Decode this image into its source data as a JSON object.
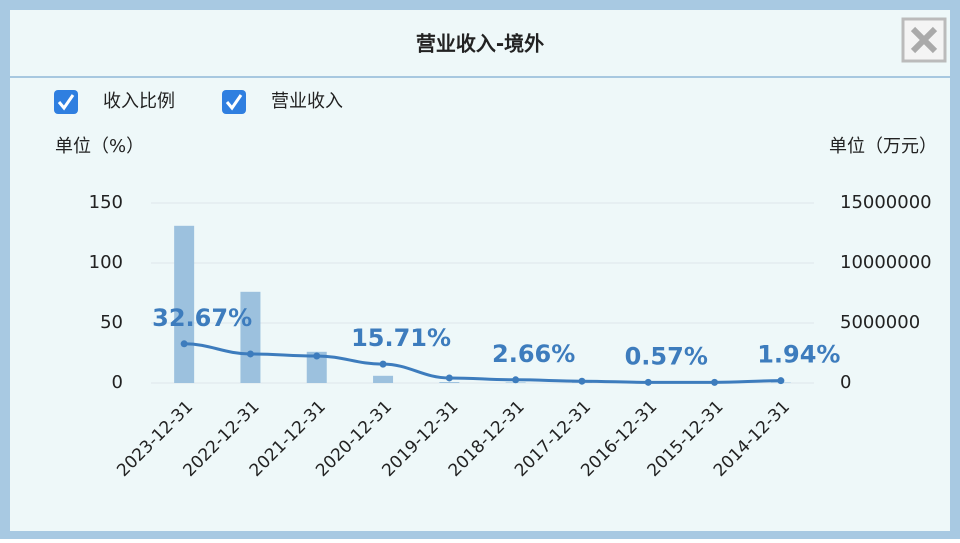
{
  "header": {
    "title": "营业收入-境外"
  },
  "chart_data": {
    "type": "combo",
    "y_label": "单位（%）",
    "y2_label": "单位（万元）",
    "categories": [
      "2023-12-31",
      "2022-12-31",
      "2021-12-31",
      "2020-12-31",
      "2019-12-31",
      "2018-12-31",
      "2017-12-31",
      "2016-12-31",
      "2015-12-31",
      "2014-12-31"
    ],
    "series": [
      {
        "name": "收入比例",
        "type": "line",
        "axis": "y",
        "color": "#3d7cbd",
        "values": [
          32.67,
          24.2,
          22.5,
          15.71,
          4.2,
          2.66,
          1.5,
          0.57,
          0.5,
          1.94
        ],
        "value_labels": [
          "32.67%",
          null,
          null,
          "15.71%",
          null,
          "2.66%",
          null,
          "0.57%",
          null,
          "1.94%"
        ]
      },
      {
        "name": "营业收入",
        "type": "bar",
        "axis": "y2",
        "color": "#9cc1de",
        "values": [
          13100000,
          7600000,
          2600000,
          600000,
          80000,
          50000,
          30000,
          10000,
          10000,
          40000
        ]
      }
    ],
    "ylim": [
      0,
      150
    ],
    "yticks": [
      0,
      50,
      100,
      150
    ],
    "y2lim": [
      0,
      15000000
    ],
    "y2ticks": [
      0,
      5000000,
      10000000,
      15000000
    ],
    "grid": true
  }
}
